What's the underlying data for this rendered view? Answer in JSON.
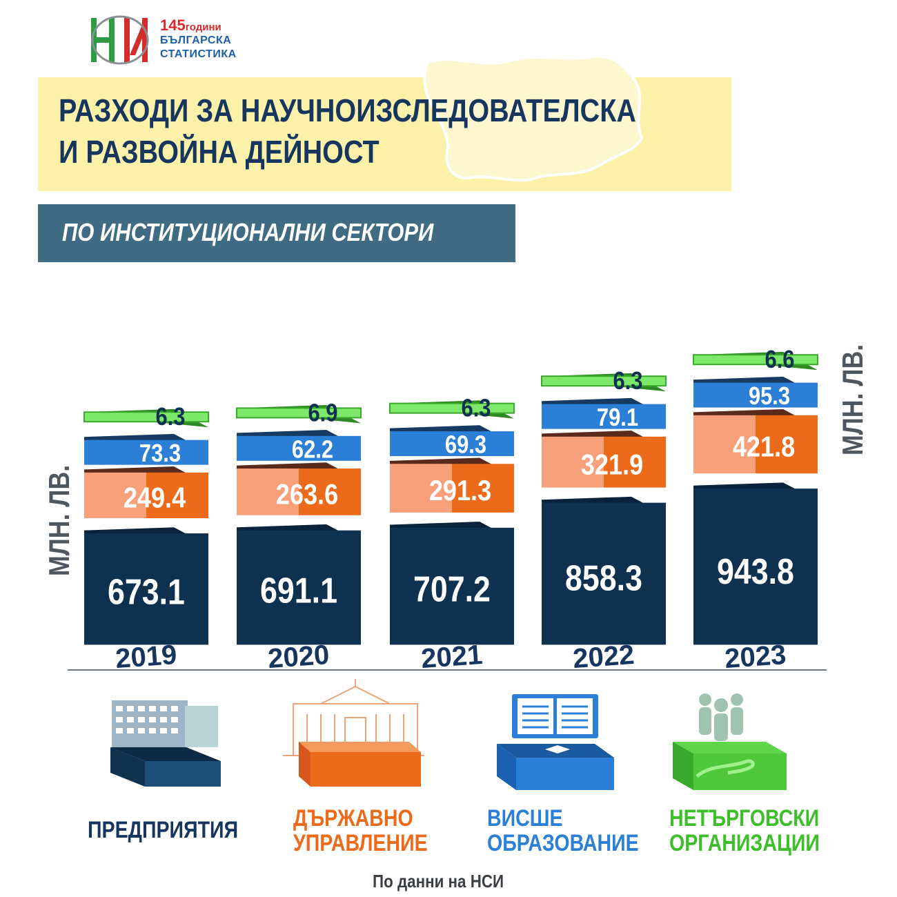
{
  "logo": {
    "years_number": "145",
    "years_word": "години",
    "line2": "БЪЛГАРСКА",
    "line3": "СТАТИСТИКА"
  },
  "header": {
    "title_line1": "РАЗХОДИ ЗА НАУЧНОИЗСЛЕДОВАТЕЛСКА",
    "title_line2": "И РАЗВОЙНА ДЕЙНОСТ",
    "subtitle": "ПО ИНСТИТУЦИОНАЛНИ СЕКТОРИ"
  },
  "unit_label": "МЛН. ЛВ.",
  "chart_data": {
    "type": "bar",
    "stacked": true,
    "categories": [
      "2019",
      "2020",
      "2021",
      "2022",
      "2023"
    ],
    "series": [
      {
        "name": "ПРЕДПРИЯТИЯ",
        "values": [
          673.1,
          691.1,
          707.2,
          858.3,
          943.8
        ],
        "value_labels": [
          "673.1",
          "691.1",
          "707.2",
          "858.3",
          "943.8"
        ],
        "color": "#0f3150"
      },
      {
        "name": "ДЪРЖАВНО УПРАВЛЕНИЕ",
        "values": [
          249.4,
          263.6,
          291.3,
          321.9,
          421.8
        ],
        "value_labels": [
          "249.4",
          "263.6",
          "291.3",
          "321.9",
          "421.8"
        ],
        "color": "#ec6b1a"
      },
      {
        "name": "ВИСШЕ ОБРАЗОВАНИЕ",
        "values": [
          73.3,
          62.2,
          69.3,
          79.1,
          95.3
        ],
        "value_labels": [
          "73.3",
          "62.2",
          "69.3",
          "79.1",
          "95.3"
        ],
        "color": "#2b7fd6"
      },
      {
        "name": "НЕТЪРГОВСКИ ОРГАНИЗАЦИИ",
        "values": [
          6.3,
          6.9,
          6.3,
          6.3,
          6.6
        ],
        "value_labels": [
          "6.3",
          "6.9",
          "6.3",
          "6.3",
          "6.6"
        ],
        "color": "#4ec73a"
      }
    ],
    "ylabel": "МЛН. ЛВ.",
    "grid": false
  },
  "legend": [
    {
      "line1": "ПРЕДПРИЯТИЯ",
      "line2": "",
      "color": "#17365f",
      "icon": "office-building-icon"
    },
    {
      "line1": "ДЪРЖАВНО",
      "line2": "УПРАВЛЕНИЕ",
      "color": "#ec6b1a",
      "icon": "parliament-building-icon"
    },
    {
      "line1": "ВИСШЕ",
      "line2": "ОБРАЗОВАНИЕ",
      "color": "#2b7fd6",
      "icon": "open-book-icon"
    },
    {
      "line1": "НЕТЪРГОВСКИ",
      "line2": "ОРГАНИЗАЦИИ",
      "color": "#3dbf2a",
      "icon": "people-hand-icon"
    }
  ],
  "source": "По данни на НСИ"
}
